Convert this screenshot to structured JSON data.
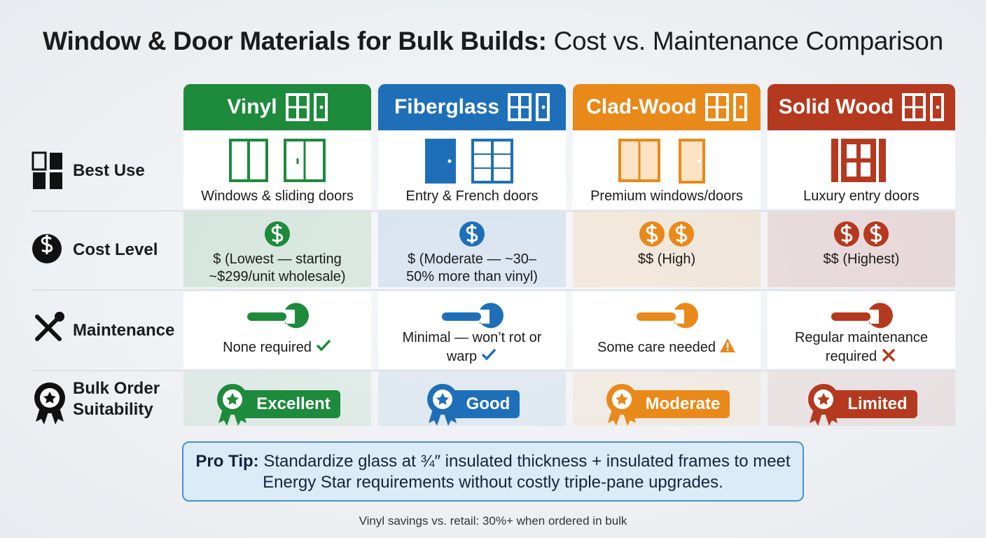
{
  "title": {
    "bold": "Window & Door Materials for Bulk Builds:",
    "regular": "Cost vs. Maintenance Comparison"
  },
  "table": {
    "columns": [
      {
        "name": "Vinyl",
        "color": "#1e8a3c"
      },
      {
        "name": "Fiberglass",
        "color": "#1f6fb8"
      },
      {
        "name": "Clad-Wood",
        "color": "#e8891a"
      },
      {
        "name": "Solid Wood",
        "color": "#b5391f"
      }
    ],
    "row_labels": [
      "Best Use",
      "Cost Level",
      "Maintenance",
      "Bulk Order Suitability"
    ],
    "rows": [
      [
        "Windows & sliding doors",
        "Entry & French doors",
        "Premium windows/doors",
        "Luxury entry doors"
      ],
      [
        "$ (Lowest — starting ~$299/unit wholesale)",
        "$ (Moderate — ~30–50% more than vinyl)",
        "$$ (High)",
        "$$ (Highest)"
      ],
      [
        "None required",
        "Minimal — won’t rot or warp",
        "Some care needed",
        "Regular maintenance required"
      ],
      [
        "Excellent",
        "Good",
        "Moderate",
        "Limited"
      ]
    ]
  },
  "pro_tip": {
    "label": "Pro Tip:",
    "text": "Standardize glass at ¾″ insulated thickness + insulated frames to meet Energy Star requirements without costly triple-pane upgrades."
  },
  "footnote": "Vinyl savings vs. retail: 30%+ when ordered in bulk"
}
